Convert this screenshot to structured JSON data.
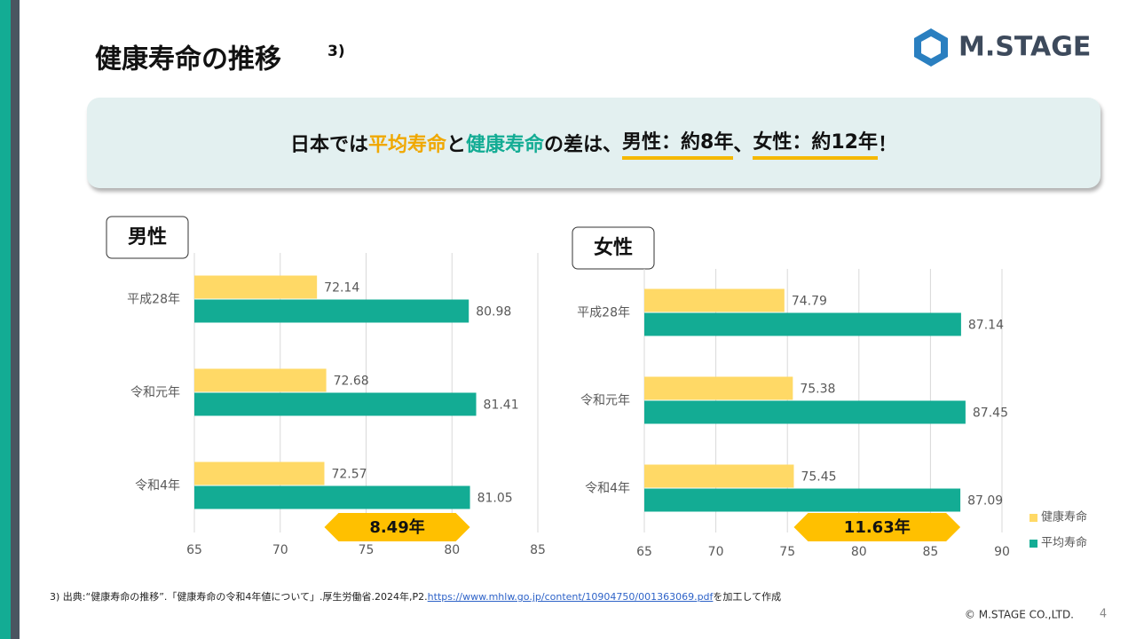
{
  "page": {
    "title": "健康寿命の推移",
    "title_sup": "3)",
    "logo": "M.STAGE",
    "banner": [
      "日本では",
      "平均寿命",
      "と",
      "健康寿命",
      "の差は、",
      "男性：約8年",
      "、",
      "女性：約12年",
      "！"
    ],
    "footnote": "3) 出典:“健康寿命の推移”.「健康寿命の令和4年値について」.厚生労働省.2024年,P2.",
    "footnote_link": "https://www.mhlw.go.jp/content/10904750/001363069.pdf",
    "footnote_end": "を加工して作成",
    "copyright": "© M.STAGE CO.,LTD.",
    "page_number": 4
  },
  "chart_data": [
    {
      "type": "bar",
      "orientation": "horizontal",
      "title": "男性",
      "categories": [
        "平成28年",
        "令和元年",
        "令和4年"
      ],
      "series": [
        {
          "name": "健康寿命",
          "color": "#ffd966",
          "values": [
            72.14,
            72.68,
            72.57
          ]
        },
        {
          "name": "平均寿命",
          "color": "#13ac94",
          "values": [
            80.98,
            81.41,
            81.05
          ]
        }
      ],
      "xlim": [
        65,
        85
      ],
      "xticks": [
        65,
        70,
        75,
        80,
        85
      ],
      "grid": true,
      "legend": false,
      "annotation": "8.49年"
    },
    {
      "type": "bar",
      "orientation": "horizontal",
      "title": "女性",
      "categories": [
        "平成28年",
        "令和元年",
        "令和4年"
      ],
      "series": [
        {
          "name": "健康寿命",
          "color": "#ffd966",
          "values": [
            74.79,
            75.38,
            75.45
          ]
        },
        {
          "name": "平均寿命",
          "color": "#13ac94",
          "values": [
            87.14,
            87.45,
            87.09
          ]
        }
      ],
      "xlim": [
        65,
        90
      ],
      "xticks": [
        65,
        70,
        75,
        80,
        85,
        90
      ],
      "grid": true,
      "legend": true,
      "annotation": "11.63年"
    }
  ]
}
